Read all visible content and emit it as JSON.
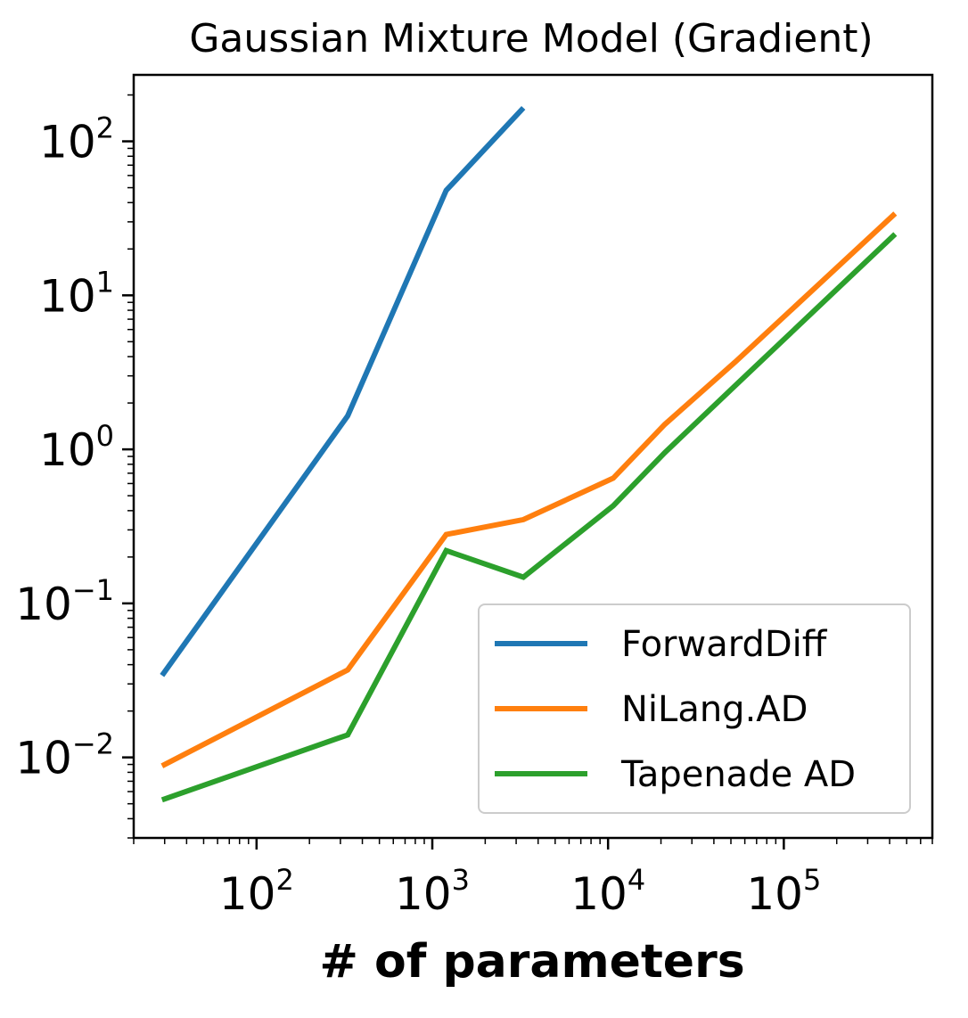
{
  "chart_data": {
    "type": "line",
    "title": "Gaussian Mixture Model (Gradient)",
    "xlabel": "# of parameters",
    "ylabel": "",
    "xscale": "log",
    "yscale": "log",
    "xlim": [
      20,
      700000
    ],
    "ylim": [
      0.003,
      270
    ],
    "xticks": [
      {
        "value": 100,
        "base": "10",
        "exp": "2"
      },
      {
        "value": 1000,
        "base": "10",
        "exp": "3"
      },
      {
        "value": 10000,
        "base": "10",
        "exp": "4"
      },
      {
        "value": 100000,
        "base": "10",
        "exp": "5"
      }
    ],
    "yticks": [
      {
        "value": 0.01,
        "base": "10",
        "exp": "−2"
      },
      {
        "value": 0.1,
        "base": "10",
        "exp": "−1"
      },
      {
        "value": 1,
        "base": "10",
        "exp": "0"
      },
      {
        "value": 10,
        "base": "10",
        "exp": "1"
      },
      {
        "value": 100,
        "base": "10",
        "exp": "2"
      }
    ],
    "grid": false,
    "legend_position": "lower-right",
    "series": [
      {
        "name": "ForwardDiff",
        "color": "#1f77b4",
        "x": [
          29,
          330,
          1200,
          3300
        ],
        "y": [
          0.034,
          1.65,
          48,
          165
        ]
      },
      {
        "name": "NiLang.AD",
        "color": "#ff7f0e",
        "x": [
          29,
          330,
          1200,
          3300,
          10700,
          21000,
          53000,
          430000
        ],
        "y": [
          0.0088,
          0.037,
          0.28,
          0.35,
          0.65,
          1.45,
          3.7,
          34
        ]
      },
      {
        "name": "Tapenade AD",
        "color": "#2ca02c",
        "x": [
          29,
          330,
          1200,
          3300,
          10700,
          21000,
          53000,
          430000
        ],
        "y": [
          0.0053,
          0.014,
          0.22,
          0.148,
          0.43,
          0.95,
          2.6,
          25
        ]
      }
    ]
  }
}
